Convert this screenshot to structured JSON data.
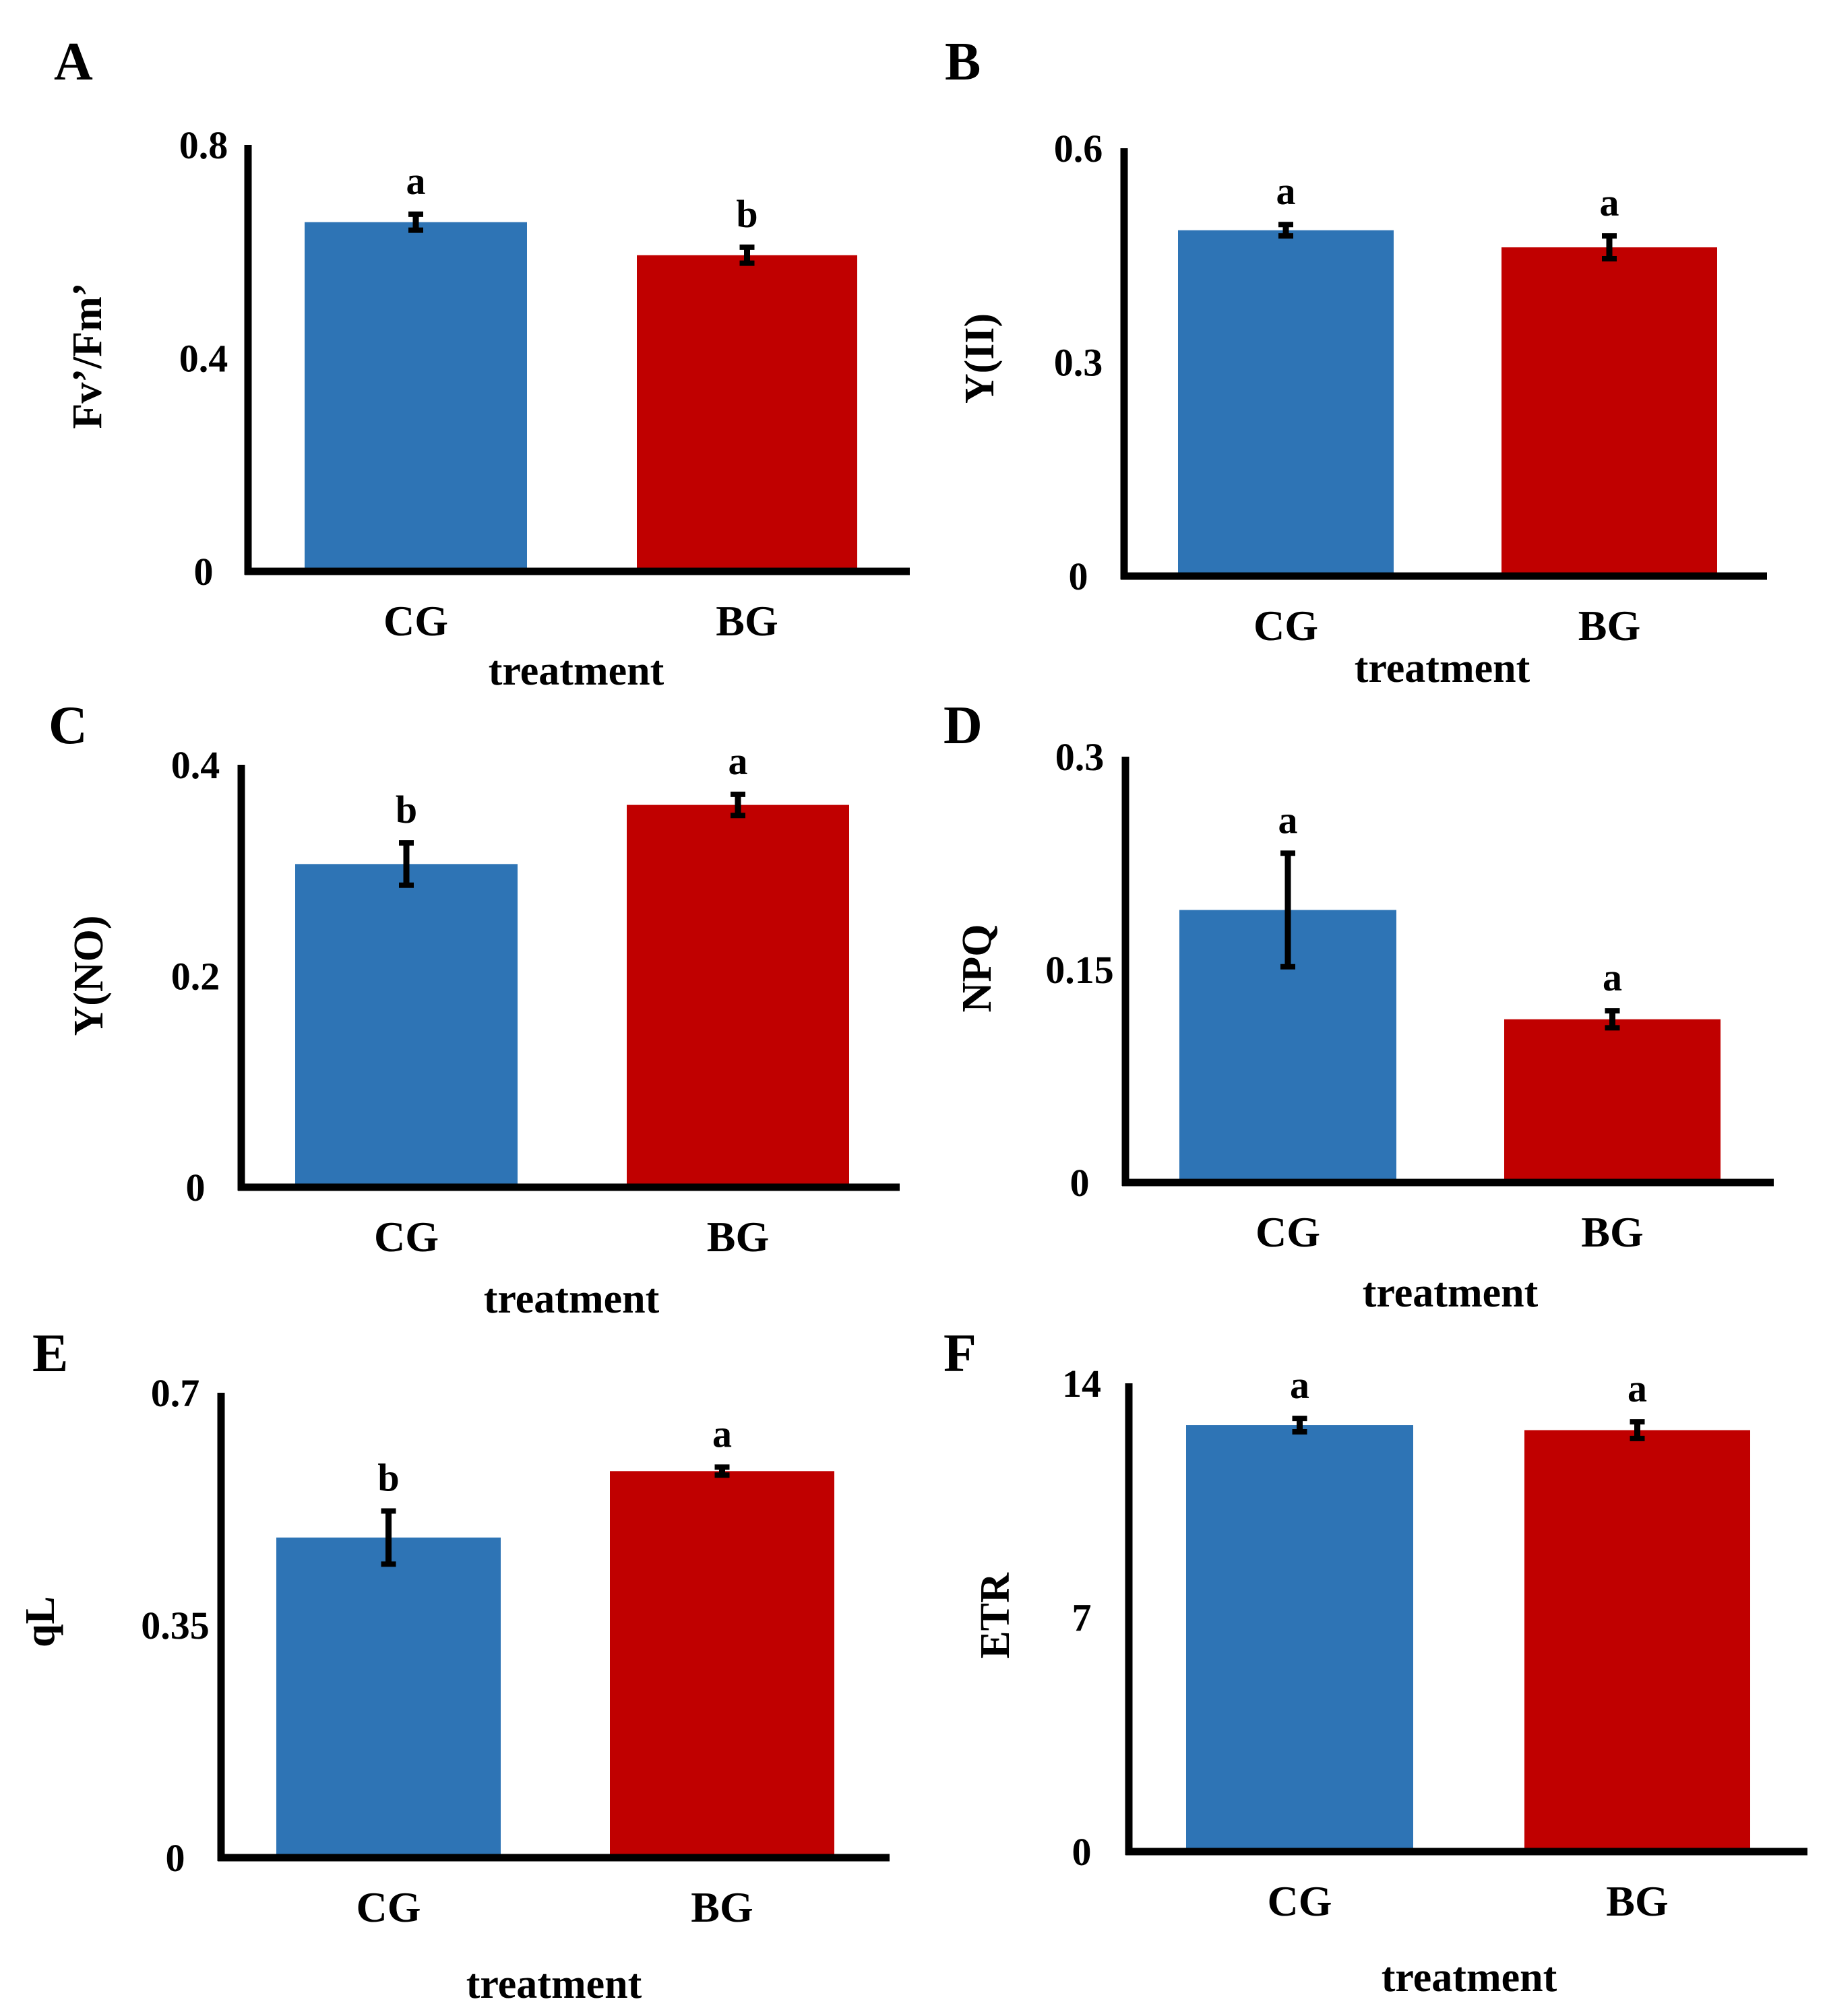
{
  "colors": {
    "CG": "#2E74B5",
    "BG": "#C00000",
    "axis": "#000000"
  },
  "chart_data": [
    {
      "type": "bar",
      "panel_label": "A",
      "ylabel": "Fv’/Fm’",
      "xlabel": "treatment",
      "categories": [
        "CG",
        "BG"
      ],
      "values": [
        0.655,
        0.593
      ],
      "errors": [
        0.015,
        0.015
      ],
      "significance": [
        "a",
        "b"
      ],
      "ylim": [
        0,
        0.8
      ],
      "yticks": [
        0,
        0.4,
        0.8
      ],
      "ytick_labels": [
        "0",
        "0.4",
        "0.8"
      ]
    },
    {
      "type": "bar",
      "panel_label": "B",
      "ylabel": "Y(II)",
      "xlabel": "treatment",
      "categories": [
        "CG",
        "BG"
      ],
      "values": [
        0.485,
        0.461
      ],
      "errors": [
        0.008,
        0.016
      ],
      "significance": [
        "a",
        "a"
      ],
      "ylim": [
        0,
        0.6
      ],
      "yticks": [
        0,
        0.3,
        0.6
      ],
      "ytick_labels": [
        "0",
        "0.3",
        "0.6"
      ]
    },
    {
      "type": "bar",
      "panel_label": "C",
      "ylabel": "Y(NO)",
      "xlabel": "treatment",
      "categories": [
        "CG",
        "BG"
      ],
      "values": [
        0.306,
        0.362
      ],
      "errors": [
        0.02,
        0.01
      ],
      "significance": [
        "b",
        "a"
      ],
      "ylim": [
        0,
        0.4
      ],
      "yticks": [
        0,
        0.2,
        0.4
      ],
      "ytick_labels": [
        "0",
        "0.2",
        "0.4"
      ]
    },
    {
      "type": "bar",
      "panel_label": "D",
      "ylabel": "NPQ",
      "xlabel": "treatment",
      "categories": [
        "CG",
        "BG"
      ],
      "values": [
        0.192,
        0.115
      ],
      "errors": [
        0.04,
        0.006
      ],
      "significance": [
        "a",
        "a"
      ],
      "ylim": [
        0,
        0.3
      ],
      "yticks": [
        0,
        0.15,
        0.3
      ],
      "ytick_labels": [
        "0",
        "0.15",
        "0.3"
      ]
    },
    {
      "type": "bar",
      "panel_label": "E",
      "ylabel": "qL",
      "xlabel": "treatment",
      "categories": [
        "CG",
        "BG"
      ],
      "values": [
        0.482,
        0.582
      ],
      "errors": [
        0.04,
        0.006
      ],
      "significance": [
        "b",
        "a"
      ],
      "ylim": [
        0,
        0.7
      ],
      "yticks": [
        0,
        0.35,
        0.7
      ],
      "ytick_labels": [
        "0",
        "0.35",
        "0.7"
      ]
    },
    {
      "type": "bar",
      "panel_label": "F",
      "ylabel": "ETR",
      "xlabel": "treatment",
      "categories": [
        "CG",
        "BG"
      ],
      "values": [
        12.75,
        12.6
      ],
      "errors": [
        0.2,
        0.25
      ],
      "significance": [
        "a",
        "a"
      ],
      "ylim": [
        0,
        14
      ],
      "yticks": [
        0,
        7,
        14
      ],
      "ytick_labels": [
        "0",
        "7",
        "14"
      ]
    }
  ]
}
